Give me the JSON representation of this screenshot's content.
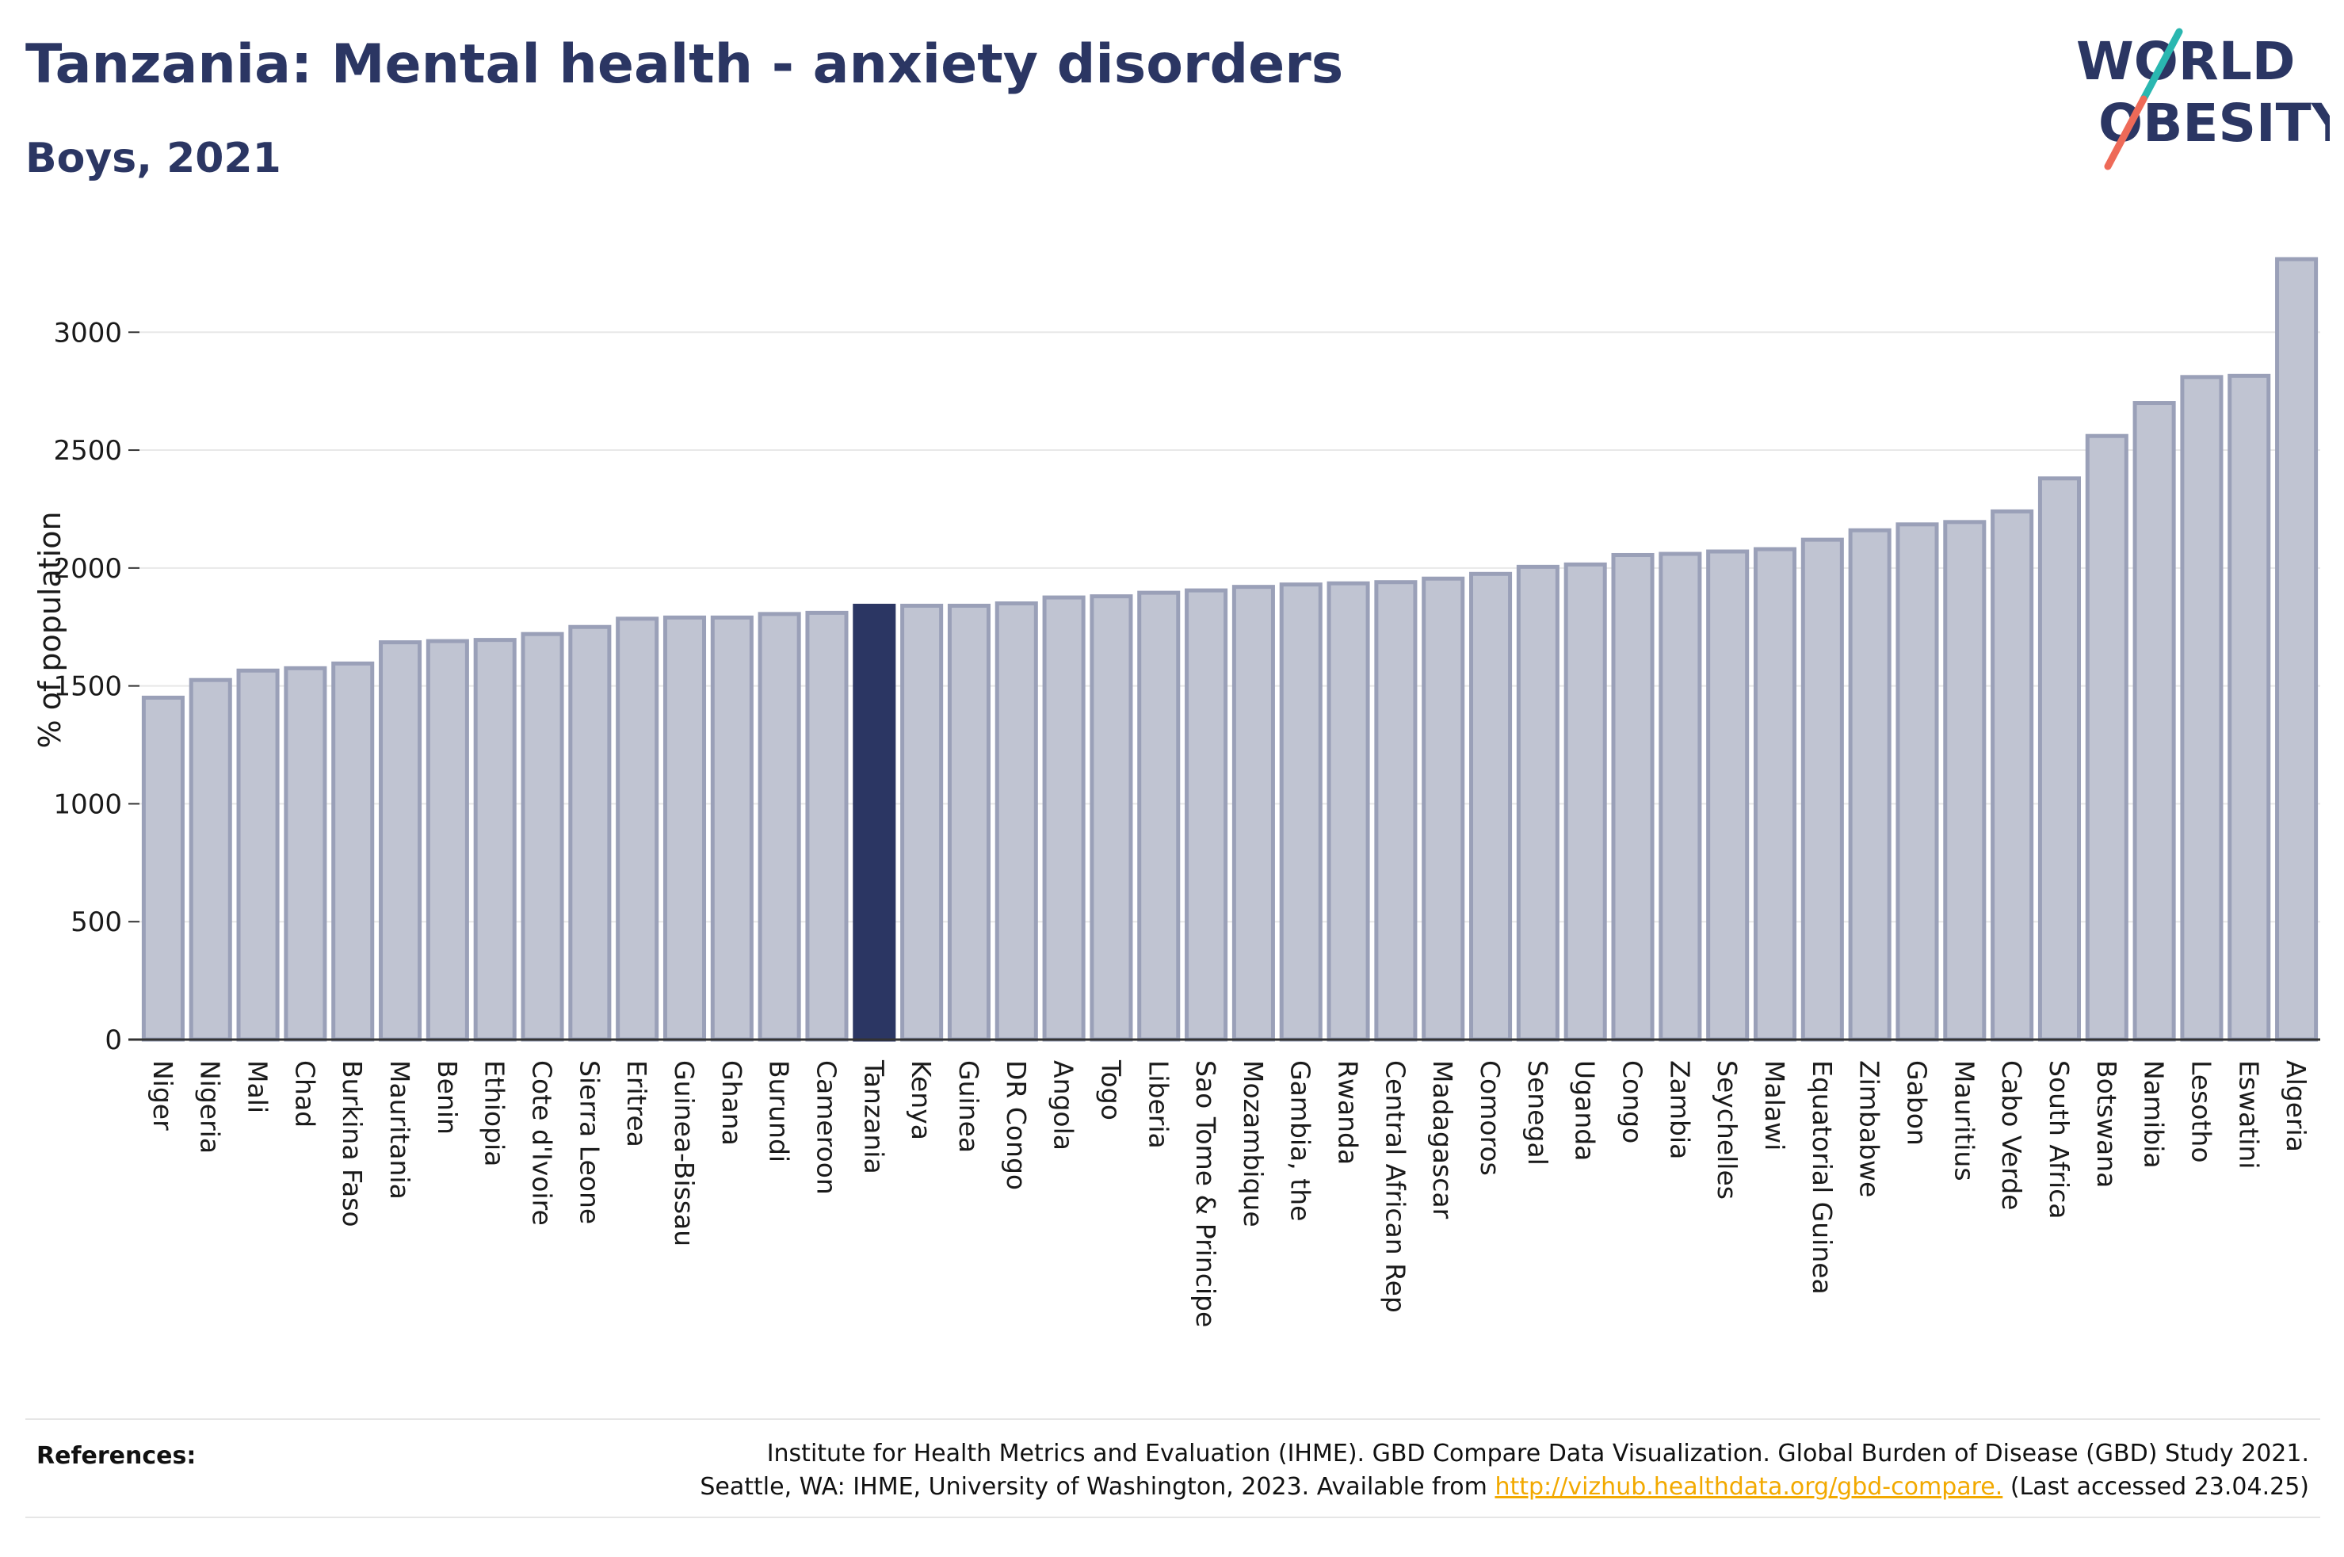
{
  "header": {
    "title": "Tanzania: Mental health - anxiety disorders",
    "subtitle": "Boys, 2021"
  },
  "logo": {
    "line1": "WORLD",
    "line2": "OBESITY"
  },
  "colors": {
    "bar": "#c0c4d2",
    "bar_outline": "#9aa0b8",
    "highlight": "#2b3663",
    "grid": "#e8e8e8",
    "title": "#2b3663",
    "logo_teal": "#2ab7b0",
    "logo_coral": "#ee6a58"
  },
  "chart_data": {
    "type": "bar",
    "ylabel": "% of population",
    "ylim": [
      0,
      3300
    ],
    "yticks": [
      0,
      500,
      1000,
      1500,
      2000,
      2500,
      3000
    ],
    "grid": true,
    "highlight": "Tanzania",
    "categories": [
      "Niger",
      "Nigeria",
      "Mali",
      "Chad",
      "Burkina Faso",
      "Mauritania",
      "Benin",
      "Ethiopia",
      "Cote d'Ivoire",
      "Sierra Leone",
      "Eritrea",
      "Guinea-Bissau",
      "Ghana",
      "Burundi",
      "Cameroon",
      "Tanzania",
      "Kenya",
      "Guinea",
      "DR Congo",
      "Angola",
      "Togo",
      "Liberia",
      "Sao Tome & Principe",
      "Mozambique",
      "Gambia, the",
      "Rwanda",
      "Central African Rep",
      "Madagascar",
      "Comoros",
      "Senegal",
      "Uganda",
      "Congo",
      "Zambia",
      "Seychelles",
      "Malawi",
      "Equatorial Guinea",
      "Zimbabwe",
      "Gabon",
      "Mauritius",
      "Cabo Verde",
      "South Africa",
      "Botswana",
      "Namibia",
      "Lesotho",
      "Eswatini",
      "Algeria"
    ],
    "values": [
      1450,
      1525,
      1565,
      1575,
      1595,
      1685,
      1690,
      1695,
      1720,
      1750,
      1785,
      1790,
      1790,
      1805,
      1810,
      1840,
      1840,
      1840,
      1850,
      1875,
      1880,
      1895,
      1905,
      1920,
      1930,
      1935,
      1940,
      1955,
      1975,
      2005,
      2015,
      2055,
      2060,
      2070,
      2080,
      2120,
      2160,
      2185,
      2195,
      2240,
      2380,
      2560,
      2700,
      2810,
      2815,
      3310
    ]
  },
  "footer": {
    "label": "References:",
    "line1": "Institute for Health Metrics and Evaluation (IHME). GBD Compare Data Visualization. Global Burden of Disease (GBD) Study 2021.",
    "line2_pre": "Seattle, WA: IHME, University of Washington, 2023. Available from",
    "link": "http://vizhub.healthdata.org/gbd-compare.",
    "line2_post": "(Last accessed 23.04.25)"
  }
}
